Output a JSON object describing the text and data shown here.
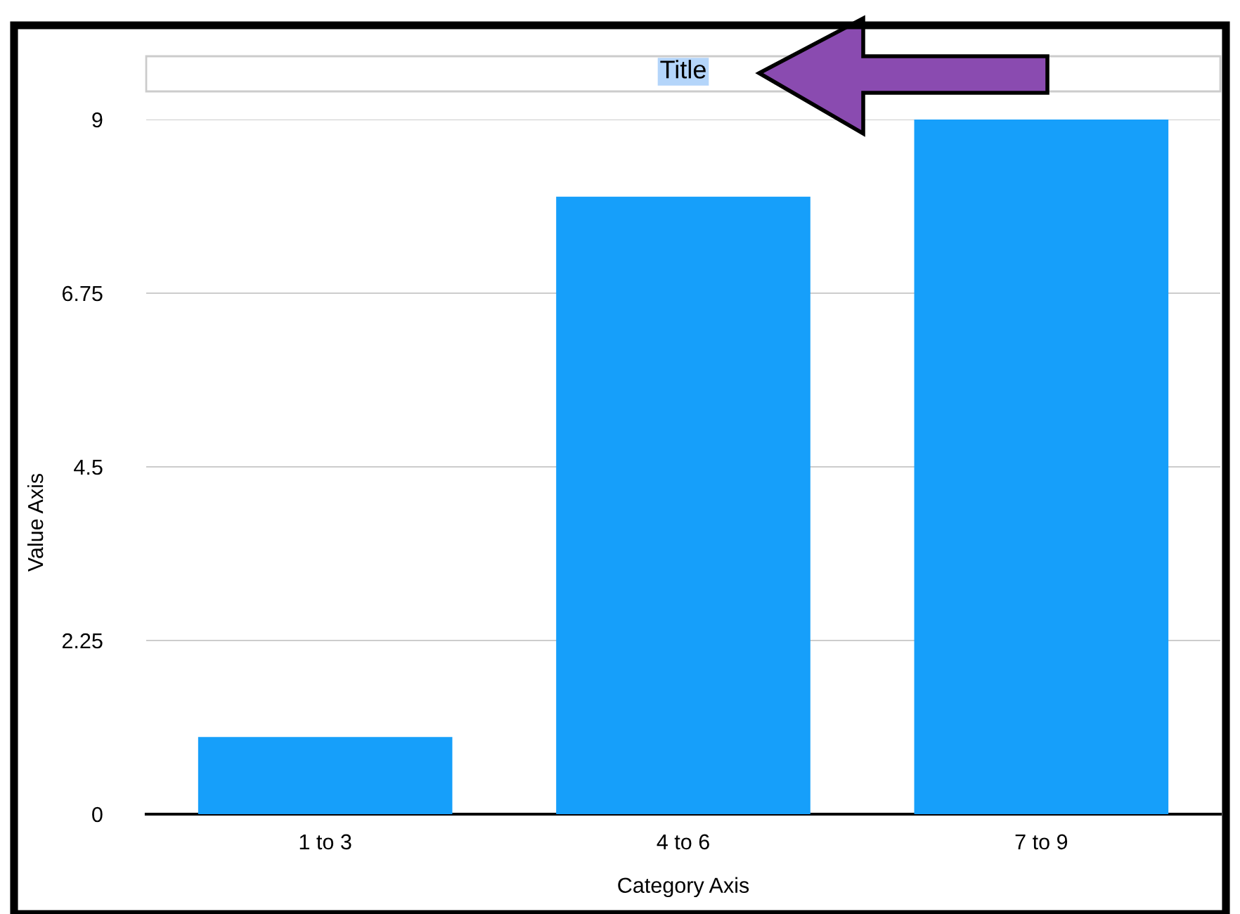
{
  "chart_data": {
    "type": "bar",
    "title": "Title",
    "xlabel": "Category Axis",
    "ylabel": "Value Axis",
    "categories": [
      "1 to 3",
      "4 to 6",
      "7 to 9"
    ],
    "values": [
      1,
      8,
      9
    ],
    "color": "#169ffa",
    "ylim": [
      0,
      9
    ],
    "yticks": [
      0,
      2.25,
      4.5,
      6.75,
      9
    ],
    "grid": "y"
  }
}
